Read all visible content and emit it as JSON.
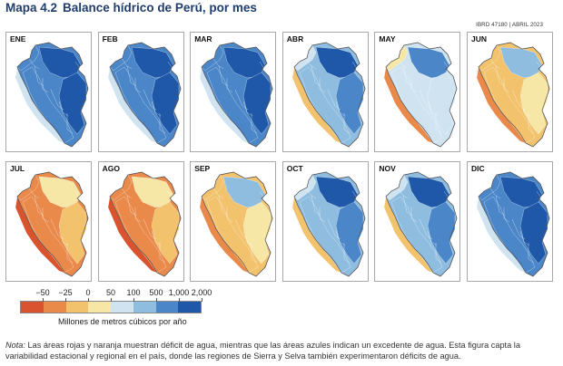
{
  "header": {
    "map_number": "Mapa 4.2",
    "title": "Balance hídrico de Perú, por mes",
    "reference": "IBRD 47180 | ABRIL 2023"
  },
  "months": [
    {
      "label": "ENE",
      "balance_level": 5
    },
    {
      "label": "FEB",
      "balance_level": 5
    },
    {
      "label": "MAR",
      "balance_level": 5
    },
    {
      "label": "ABR",
      "balance_level": 4
    },
    {
      "label": "MAY",
      "balance_level": 3
    },
    {
      "label": "JUN",
      "balance_level": 2
    },
    {
      "label": "JUL",
      "balance_level": 1
    },
    {
      "label": "AGO",
      "balance_level": 1
    },
    {
      "label": "SEP",
      "balance_level": 2
    },
    {
      "label": "OCT",
      "balance_level": 4
    },
    {
      "label": "NOV",
      "balance_level": 4
    },
    {
      "label": "DIC",
      "balance_level": 5
    }
  ],
  "legend": {
    "ticks": [
      "−50",
      "−25",
      "0",
      "50",
      "100",
      "500",
      "1,000",
      "2,000"
    ],
    "colors": [
      "#d9542e",
      "#e9894a",
      "#f2c26c",
      "#f7e7a6",
      "#cfe3f1",
      "#8fbde0",
      "#4a86c8",
      "#1f58a8"
    ],
    "units": "Millones de metros cúbicos por año"
  },
  "note": {
    "label": "Nota:",
    "text": "Las áreas rojas y naranja muestran déficit de agua, mientras que las áreas azules indican un excedente de agua. Esta figura capta la variabilidad estacional y regional en el país, donde las regiones de Sierra y Selva también experimentaron déficits de agua."
  }
}
